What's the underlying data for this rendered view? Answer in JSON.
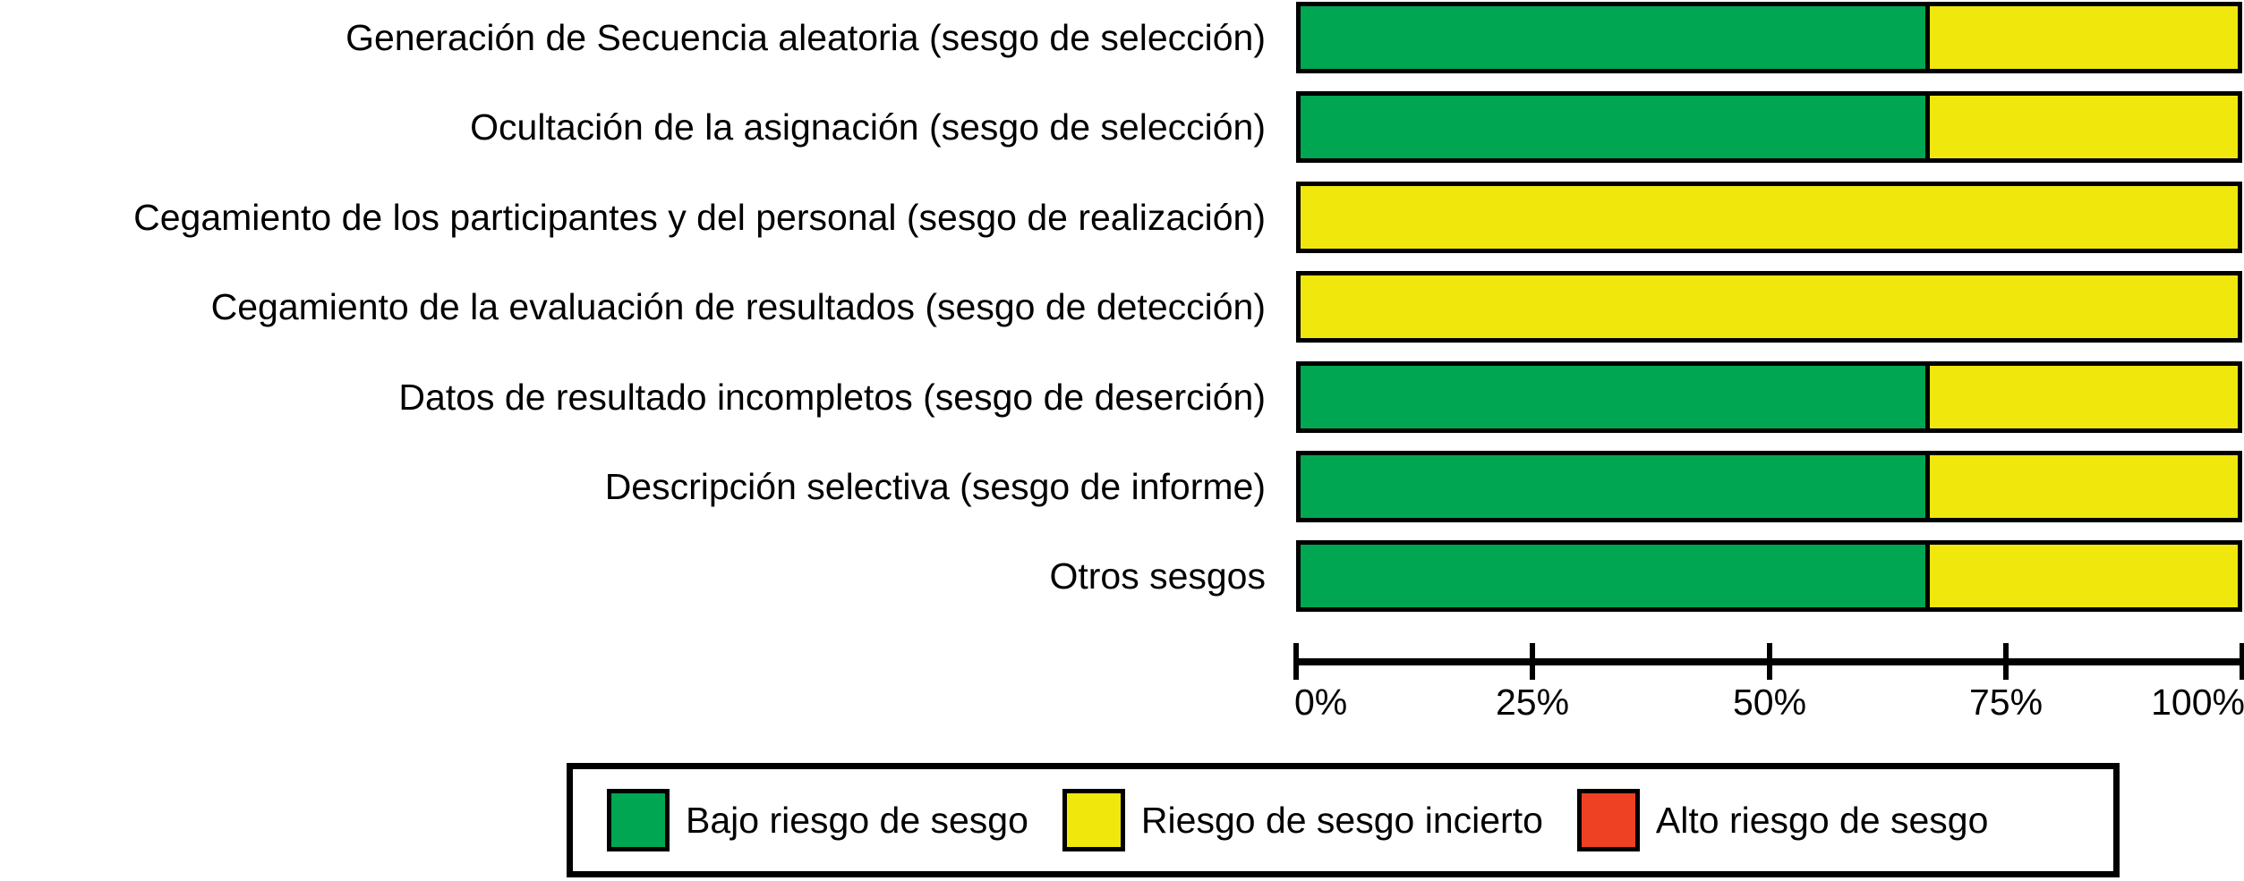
{
  "chart_data": {
    "type": "bar",
    "orientation": "horizontal",
    "stacked": true,
    "title": "",
    "xlabel": "",
    "ylabel": "",
    "categories": [
      "Generación de Secuencia aleatoria (sesgo de selección)",
      "Ocultación de la asignación (sesgo de selección)",
      "Cegamiento de los participantes y del personal (sesgo de realización)",
      "Cegamiento de la evaluación de resultados (sesgo de detección)",
      "Datos de resultado incompletos (sesgo de deserción)",
      "Descripción selectiva (sesgo de informe)",
      "Otros sesgos"
    ],
    "series": [
      {
        "name": "Bajo riesgo de sesgo",
        "color": "#00A651",
        "values": [
          66.7,
          66.7,
          0,
          0,
          66.7,
          66.7,
          66.7
        ]
      },
      {
        "name": "Riesgo de sesgo incierto",
        "color": "#F0E70C",
        "values": [
          33.3,
          33.3,
          100,
          100,
          33.3,
          33.3,
          33.3
        ]
      },
      {
        "name": "Alto riesgo de sesgo",
        "color": "#EE4124",
        "values": [
          0,
          0,
          0,
          0,
          0,
          0,
          0
        ]
      }
    ],
    "x_axis": {
      "range": [
        0,
        100
      ],
      "unit": "%",
      "tick_labels": [
        "0%",
        "25%",
        "50%",
        "75%",
        "100%"
      ]
    },
    "legend_position": "bottom",
    "grid": false
  },
  "colors": {
    "ink": "#000000",
    "background": "#FFFFFF"
  }
}
